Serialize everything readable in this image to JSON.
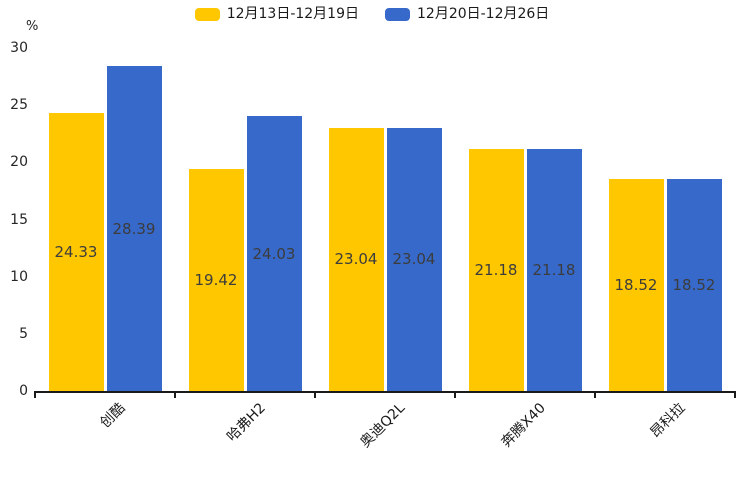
{
  "chart_data": {
    "type": "bar",
    "title": "",
    "ylabel": "%",
    "categories": [
      "创酷",
      "哈弗H2",
      "奥迪Q2L",
      "奔腾X40",
      "昂科拉"
    ],
    "series": [
      {
        "name": "12月13日-12月19日",
        "color": "#FFC700",
        "values": [
          24.33,
          19.42,
          23.04,
          21.18,
          18.52
        ]
      },
      {
        "name": "12月20日-12月26日",
        "color": "#3669C9",
        "values": [
          28.39,
          24.03,
          23.04,
          21.18,
          18.52
        ]
      }
    ],
    "value_labels": [
      "24.33",
      "19.42",
      "23.04",
      "21.18",
      "18.52",
      "28.39",
      "24.03",
      "23.04",
      "21.18",
      "18.52"
    ],
    "ylim": [
      0,
      30
    ],
    "yticks": [
      0,
      5,
      10,
      15,
      20,
      25,
      30
    ],
    "grid": false,
    "legend_position": "top-center",
    "value_label_position": "inside-center",
    "axis_color": "#1a1a1a",
    "value_label_color": "#3c3c3c"
  }
}
